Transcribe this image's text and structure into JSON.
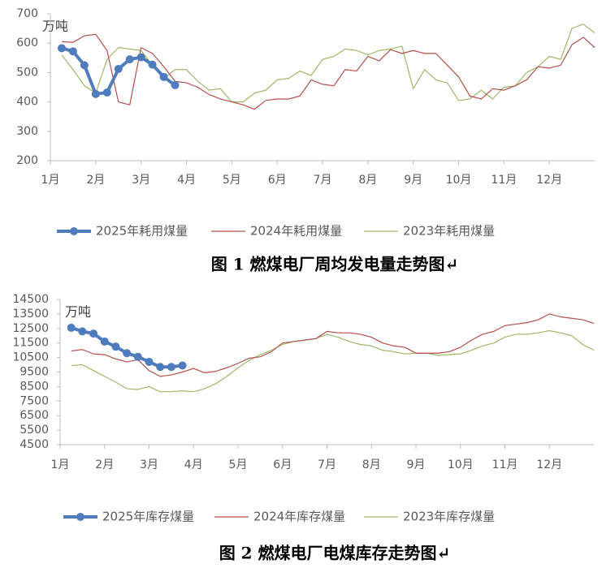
{
  "chart_data": [
    {
      "type": "line",
      "unit_label": "万吨",
      "caption": "图 1   燃煤电厂周均发电量走势图↵",
      "x": [
        1.25,
        1.5,
        1.75,
        2,
        2.25,
        2.5,
        2.75,
        3,
        3.25,
        3.5,
        3.75,
        4,
        4.25,
        4.5,
        4.75,
        5,
        5.25,
        5.5,
        5.75,
        6,
        6.25,
        6.5,
        6.75,
        7,
        7.25,
        7.5,
        7.75,
        8,
        8.25,
        8.5,
        8.75,
        9,
        9.25,
        9.5,
        9.75,
        10,
        10.25,
        10.5,
        10.75,
        11,
        11.25,
        11.5,
        11.75,
        12,
        12.25,
        12.5,
        12.75,
        13
      ],
      "xlim": [
        1,
        13
      ],
      "xticks": [
        {
          "value": 1,
          "label": "1月"
        },
        {
          "value": 2,
          "label": "2月"
        },
        {
          "value": 3,
          "label": "3月"
        },
        {
          "value": 4,
          "label": "4月"
        },
        {
          "value": 5,
          "label": "5月"
        },
        {
          "value": 6,
          "label": "6月"
        },
        {
          "value": 7,
          "label": "7月"
        },
        {
          "value": 8,
          "label": "8月"
        },
        {
          "value": 9,
          "label": "9月"
        },
        {
          "value": 10,
          "label": "10月"
        },
        {
          "value": 11,
          "label": "11月"
        },
        {
          "value": 12,
          "label": "12月"
        }
      ],
      "ylim": [
        200,
        700
      ],
      "yticks": [
        200,
        300,
        400,
        500,
        600,
        700
      ],
      "series": [
        {
          "name": "2025年耗用煤量",
          "color": "#4f7cbc",
          "markers": true,
          "values": [
            583,
            572,
            525,
            427,
            432,
            512,
            545,
            552,
            527,
            485,
            457,
            null,
            null,
            null,
            null,
            null,
            null,
            null,
            null,
            null,
            null,
            null,
            null,
            null,
            null,
            null,
            null,
            null,
            null,
            null,
            null,
            null,
            null,
            null,
            null,
            null,
            null,
            null,
            null,
            null,
            null,
            null,
            null,
            null,
            null,
            null,
            null,
            null
          ]
        },
        {
          "name": "2024年耗用煤量",
          "color": "#b5504e",
          "markers": false,
          "values": [
            605,
            603,
            625,
            630,
            575,
            400,
            390,
            585,
            565,
            520,
            470,
            465,
            450,
            425,
            410,
            400,
            390,
            375,
            405,
            410,
            410,
            420,
            475,
            460,
            455,
            510,
            505,
            555,
            540,
            578,
            565,
            575,
            565,
            565,
            525,
            485,
            420,
            410,
            445,
            440,
            455,
            475,
            520,
            515,
            525,
            595,
            620,
            585
          ]
        },
        {
          "name": "2023年耗用煤量",
          "color": "#a0b868",
          "markers": false,
          "values": [
            560,
            510,
            455,
            430,
            545,
            585,
            580,
            575,
            525,
            480,
            510,
            510,
            470,
            440,
            445,
            400,
            400,
            430,
            440,
            475,
            480,
            505,
            490,
            545,
            555,
            580,
            575,
            560,
            575,
            580,
            590,
            445,
            510,
            475,
            465,
            405,
            410,
            440,
            410,
            450,
            455,
            500,
            520,
            555,
            545,
            650,
            665,
            635
          ]
        }
      ]
    },
    {
      "type": "line",
      "unit_label": "万吨",
      "caption": "图 2   燃煤电厂电煤库存走势图↵",
      "x": [
        1.25,
        1.5,
        1.75,
        2,
        2.25,
        2.5,
        2.75,
        3,
        3.25,
        3.5,
        3.75,
        4,
        4.25,
        4.5,
        4.75,
        5,
        5.25,
        5.5,
        5.75,
        6,
        6.25,
        6.5,
        6.75,
        7,
        7.25,
        7.5,
        7.75,
        8,
        8.25,
        8.5,
        8.75,
        9,
        9.25,
        9.5,
        9.75,
        10,
        10.25,
        10.5,
        10.75,
        11,
        11.25,
        11.5,
        11.75,
        12,
        12.25,
        12.5,
        12.75,
        13
      ],
      "xlim": [
        1,
        13
      ],
      "xticks": [
        {
          "value": 1,
          "label": "1月"
        },
        {
          "value": 2,
          "label": "2月"
        },
        {
          "value": 3,
          "label": "3月"
        },
        {
          "value": 4,
          "label": "4月"
        },
        {
          "value": 5,
          "label": "5月"
        },
        {
          "value": 6,
          "label": "6月"
        },
        {
          "value": 7,
          "label": "7月"
        },
        {
          "value": 8,
          "label": "8月"
        },
        {
          "value": 9,
          "label": "9月"
        },
        {
          "value": 10,
          "label": "10月"
        },
        {
          "value": 11,
          "label": "11月"
        },
        {
          "value": 12,
          "label": "12月"
        }
      ],
      "ylim": [
        4500,
        14500
      ],
      "yticks": [
        4500,
        5500,
        6500,
        7500,
        8500,
        9500,
        10500,
        11500,
        12500,
        13500,
        14500
      ],
      "series": [
        {
          "name": "2025年库存煤量",
          "color": "#4f7cbc",
          "markers": true,
          "values": [
            12550,
            12300,
            12150,
            11600,
            11250,
            10800,
            10550,
            10200,
            9850,
            9850,
            9950,
            null,
            null,
            null,
            null,
            null,
            null,
            null,
            null,
            null,
            null,
            null,
            null,
            null,
            null,
            null,
            null,
            null,
            null,
            null,
            null,
            null,
            null,
            null,
            null,
            null,
            null,
            null,
            null,
            null,
            null,
            null,
            null,
            null,
            null,
            null,
            null,
            null
          ]
        },
        {
          "name": "2024年库存煤量",
          "color": "#b5504e",
          "markers": false,
          "values": [
            10950,
            11050,
            10750,
            10700,
            10400,
            10200,
            10350,
            9600,
            9200,
            9300,
            9500,
            9750,
            9450,
            9550,
            9800,
            10100,
            10450,
            10550,
            10900,
            11500,
            11600,
            11700,
            11800,
            12300,
            12200,
            12200,
            12100,
            11900,
            11500,
            11300,
            11200,
            10800,
            10800,
            10800,
            10900,
            11200,
            11700,
            12100,
            12300,
            12700,
            12800,
            12900,
            13100,
            13500,
            13300,
            13200,
            13100,
            12850
          ]
        },
        {
          "name": "2023年库存煤量",
          "color": "#a0b868",
          "markers": false,
          "values": [
            9950,
            10000,
            9600,
            9200,
            8800,
            8350,
            8300,
            8500,
            8150,
            8150,
            8200,
            8150,
            8350,
            8700,
            9200,
            9800,
            10300,
            10700,
            11000,
            11400,
            11600,
            11700,
            11800,
            12100,
            11900,
            11600,
            11400,
            11300,
            11000,
            10900,
            10750,
            10800,
            10800,
            10650,
            10700,
            10750,
            11000,
            11300,
            11500,
            11900,
            12100,
            12100,
            12200,
            12350,
            12200,
            12000,
            11400,
            11000
          ]
        }
      ]
    }
  ]
}
